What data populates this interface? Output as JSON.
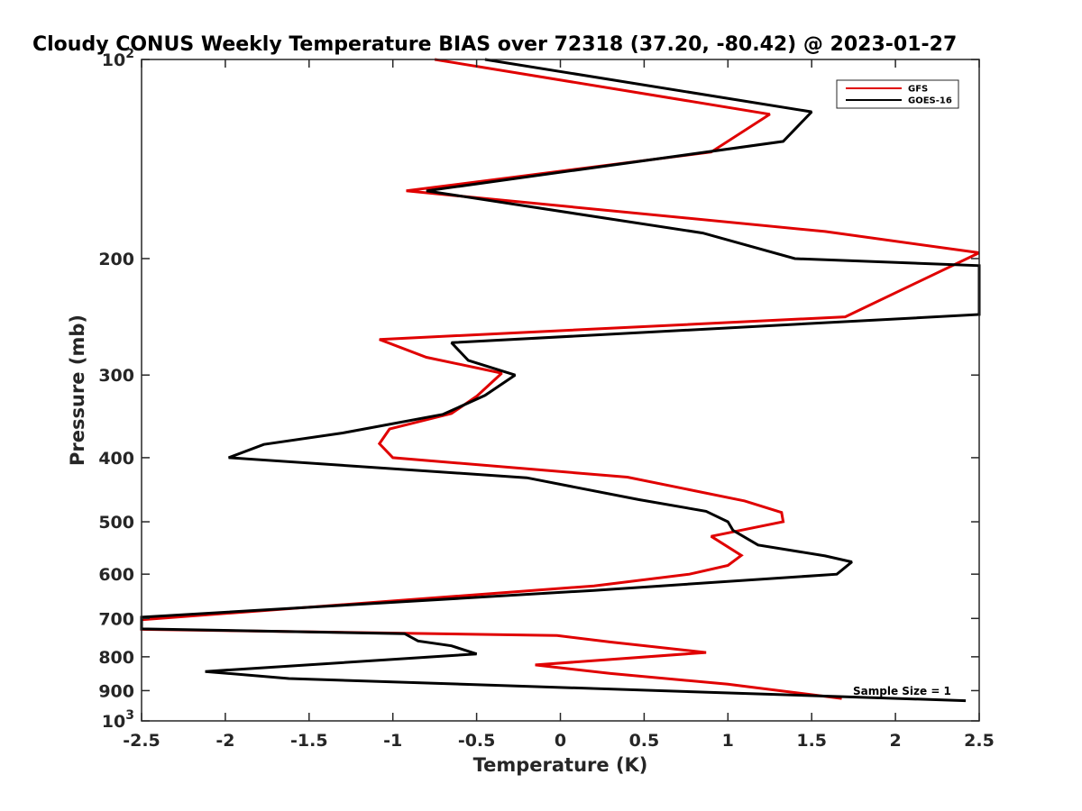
{
  "chart_data": {
    "type": "line",
    "title": "Cloudy CONUS Weekly Temperature BIAS over 72318 (37.20, -80.42) @ 2023-01-27",
    "xlabel": "Temperature (K)",
    "ylabel": "Pressure (mb)",
    "xlim": [
      -2.5,
      2.5
    ],
    "ylim": [
      100,
      1000
    ],
    "y_scale": "log",
    "y_reversed": true,
    "grid": false,
    "legend_position": "top-right",
    "x_ticks": [
      -2.5,
      -2,
      -1.5,
      -1,
      -0.5,
      0,
      0.5,
      1,
      1.5,
      2,
      2.5
    ],
    "x_tick_labels": [
      "-2.5",
      "-2",
      "-1.5",
      "-1",
      "-0.5",
      "0",
      "0.5",
      "1",
      "1.5",
      "2",
      "2.5"
    ],
    "y_ticks": [
      {
        "value": 100,
        "base": "10",
        "exp": "2"
      },
      {
        "value": 200,
        "label": "200"
      },
      {
        "value": 300,
        "label": "300"
      },
      {
        "value": 400,
        "label": "400"
      },
      {
        "value": 500,
        "label": "500"
      },
      {
        "value": 600,
        "label": "600"
      },
      {
        "value": 700,
        "label": "700"
      },
      {
        "value": 800,
        "label": "800"
      },
      {
        "value": 900,
        "label": "900"
      },
      {
        "value": 1000,
        "base": "10",
        "exp": "3"
      }
    ],
    "annotation": "Sample Size = 1",
    "series": [
      {
        "name": "GFS",
        "color": "#e00000",
        "points": [
          [
            -0.75,
            100
          ],
          [
            1.25,
            121
          ],
          [
            0.9,
            138
          ],
          [
            -0.92,
            158
          ],
          [
            1.58,
            182
          ],
          [
            2.5,
            196
          ],
          [
            1.7,
            245
          ],
          [
            -1.08,
            265
          ],
          [
            -0.8,
            282
          ],
          [
            -0.35,
            298
          ],
          [
            -0.5,
            323
          ],
          [
            -0.65,
            343
          ],
          [
            -1.02,
            362
          ],
          [
            -1.08,
            381
          ],
          [
            -1.0,
            400
          ],
          [
            0.4,
            428
          ],
          [
            1.1,
            465
          ],
          [
            1.32,
            484
          ],
          [
            1.33,
            500
          ],
          [
            0.9,
            526
          ],
          [
            1.08,
            562
          ],
          [
            1.0,
            582
          ],
          [
            0.77,
            600
          ],
          [
            0.2,
            625
          ],
          [
            -2.5,
            703
          ],
          [
            -2.5,
            727
          ],
          [
            -0.02,
            743
          ],
          [
            0.3,
            760
          ],
          [
            0.87,
            788
          ],
          [
            -0.15,
            823
          ],
          [
            0.3,
            848
          ],
          [
            1.0,
            880
          ],
          [
            1.68,
            925
          ]
        ]
      },
      {
        "name": "GOES-16",
        "color": "#000000",
        "points": [
          [
            -0.45,
            100
          ],
          [
            1.5,
            120
          ],
          [
            1.33,
            133
          ],
          [
            -0.8,
            158
          ],
          [
            0.85,
            183
          ],
          [
            1.4,
            200
          ],
          [
            2.5,
            205
          ],
          [
            2.5,
            243
          ],
          [
            -0.65,
            268
          ],
          [
            -0.55,
            285
          ],
          [
            -0.27,
            300
          ],
          [
            -0.45,
            322
          ],
          [
            -0.7,
            344
          ],
          [
            -1.3,
            367
          ],
          [
            -1.77,
            382
          ],
          [
            -1.98,
            400
          ],
          [
            -0.2,
            429
          ],
          [
            0.47,
            463
          ],
          [
            0.87,
            482
          ],
          [
            1.0,
            500
          ],
          [
            1.03,
            515
          ],
          [
            1.18,
            542
          ],
          [
            1.58,
            563
          ],
          [
            1.74,
            575
          ],
          [
            1.65,
            600
          ],
          [
            0.2,
            635
          ],
          [
            -2.5,
            697
          ],
          [
            -2.5,
            726
          ],
          [
            -0.93,
            738
          ],
          [
            -0.85,
            757
          ],
          [
            -0.65,
            770
          ],
          [
            -0.5,
            792
          ],
          [
            -2.12,
            842
          ],
          [
            -1.62,
            863
          ],
          [
            2.42,
            932
          ]
        ]
      }
    ]
  }
}
